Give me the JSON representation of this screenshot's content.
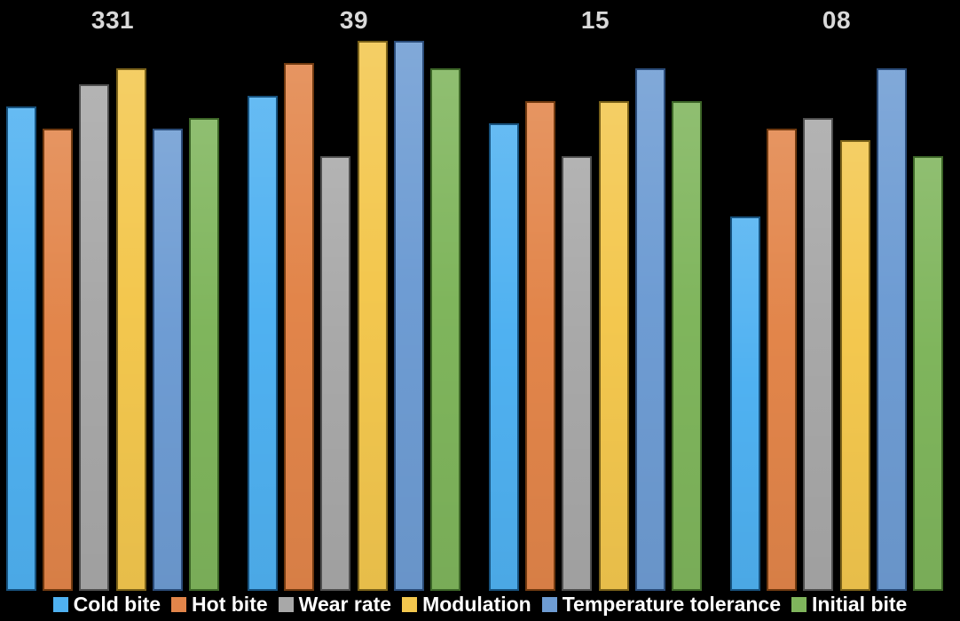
{
  "page": {
    "background_color": "#000000",
    "category_label_color": "#D9D9D9",
    "legend_text_color": "#FFFFFF"
  },
  "chart_data": {
    "type": "bar",
    "title": "",
    "xlabel": "",
    "ylabel": "",
    "categories": [
      "331",
      "39",
      "15",
      "08"
    ],
    "series": [
      {
        "name": "Cold bite",
        "color": "#4FB1F1",
        "border_color": "#17527E",
        "values": [
          8.8,
          9.0,
          8.5,
          6.8
        ]
      },
      {
        "name": "Hot bite",
        "color": "#E2854A",
        "border_color": "#713A10",
        "values": [
          8.4,
          9.6,
          8.9,
          8.4
        ]
      },
      {
        "name": "Wear rate",
        "color": "#A8A8A8",
        "border_color": "#4F4F4F",
        "values": [
          9.2,
          7.9,
          7.9,
          8.6
        ]
      },
      {
        "name": "Modulation",
        "color": "#F3C74E",
        "border_color": "#7A621A",
        "values": [
          9.5,
          10.0,
          8.9,
          8.2
        ]
      },
      {
        "name": "Temperature tolerance",
        "color": "#6E9CD3",
        "border_color": "#2A4B78",
        "values": [
          8.4,
          10.0,
          9.5,
          9.5
        ]
      },
      {
        "name": "Initial bite",
        "color": "#7FB55C",
        "border_color": "#3D6628",
        "values": [
          8.6,
          9.5,
          8.9,
          7.9
        ]
      }
    ],
    "ylim": [
      0,
      10.74
    ],
    "grid": false,
    "axes_visible": false,
    "legend_position": "bottom"
  }
}
